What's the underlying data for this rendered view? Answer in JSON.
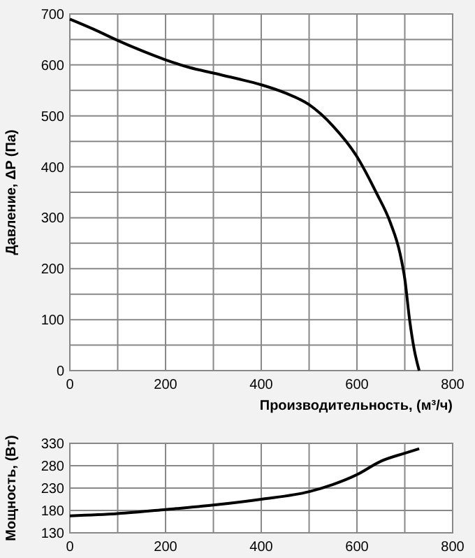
{
  "chart_data": [
    {
      "type": "line",
      "xlabel": "Производительность, (м³/ч)",
      "ylabel": "Давление, ΔP (Па)",
      "xlim": [
        0,
        800
      ],
      "ylim": [
        0,
        700
      ],
      "xticks": [
        0,
        {
          "value": 100,
          "label": null
        },
        200,
        {
          "value": 300,
          "label": null
        },
        400,
        {
          "value": 500,
          "label": null
        },
        600,
        {
          "value": 700,
          "label": null
        },
        800
      ],
      "yticks": [
        0,
        {
          "value": 50,
          "label": null
        },
        100,
        {
          "value": 150,
          "label": null
        },
        200,
        {
          "value": 250,
          "label": null
        },
        300,
        {
          "value": 350,
          "label": null
        },
        400,
        {
          "value": 450,
          "label": null
        },
        500,
        {
          "value": 550,
          "label": null
        },
        600,
        {
          "value": 650,
          "label": null
        },
        700
      ],
      "grid": true,
      "marker": "none",
      "series": [
        {
          "color": "#000000",
          "x": [
            0,
            50,
            100,
            150,
            200,
            250,
            300,
            350,
            400,
            450,
            500,
            550,
            600,
            640,
            670,
            690,
            700,
            710,
            720,
            730
          ],
          "values": [
            690,
            670,
            648,
            628,
            610,
            595,
            584,
            573,
            561,
            545,
            522,
            480,
            420,
            350,
            290,
            230,
            180,
            100,
            40,
            0
          ]
        }
      ]
    },
    {
      "type": "line",
      "ylabel": "Мощность, (Вт)",
      "xlim": [
        0,
        800
      ],
      "ylim": [
        130,
        330
      ],
      "xticks": [
        0,
        {
          "value": 100,
          "label": null
        },
        200,
        {
          "value": 300,
          "label": null
        },
        400,
        {
          "value": 500,
          "label": null
        },
        600,
        {
          "value": 700,
          "label": null
        },
        800
      ],
      "yticks": [
        130,
        180,
        230,
        280,
        330
      ],
      "grid": true,
      "marker": "none",
      "series": [
        {
          "color": "#000000",
          "x": [
            0,
            100,
            200,
            300,
            400,
            500,
            550,
            600,
            650,
            700,
            730
          ],
          "values": [
            168,
            173,
            182,
            192,
            205,
            222,
            238,
            260,
            290,
            308,
            318
          ]
        }
      ]
    }
  ]
}
